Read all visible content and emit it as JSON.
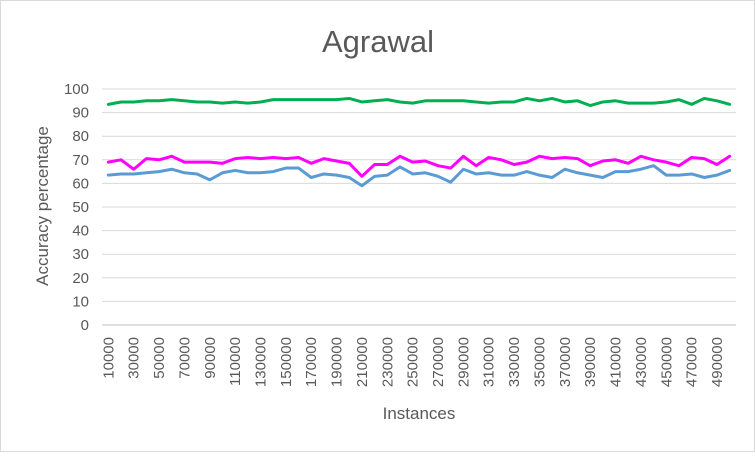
{
  "chart_data": {
    "type": "line",
    "title": "Agrawal",
    "xlabel": "Instances",
    "ylabel": "Accuracy percentage",
    "ylim": [
      0,
      100
    ],
    "yticks": [
      0,
      10,
      20,
      30,
      40,
      50,
      60,
      70,
      80,
      90,
      100
    ],
    "x": [
      10000,
      20000,
      30000,
      40000,
      50000,
      60000,
      70000,
      80000,
      90000,
      100000,
      110000,
      120000,
      130000,
      140000,
      150000,
      160000,
      170000,
      180000,
      190000,
      200000,
      210000,
      220000,
      230000,
      240000,
      250000,
      260000,
      270000,
      280000,
      290000,
      300000,
      310000,
      320000,
      330000,
      340000,
      350000,
      360000,
      370000,
      380000,
      390000,
      400000,
      410000,
      420000,
      430000,
      440000,
      450000,
      460000,
      470000,
      480000,
      490000,
      500000
    ],
    "xtick_labels": [
      "10000",
      "30000",
      "50000",
      "70000",
      "90000",
      "110000",
      "130000",
      "150000",
      "170000",
      "190000",
      "210000",
      "230000",
      "250000",
      "270000",
      "290000",
      "310000",
      "330000",
      "350000",
      "370000",
      "390000",
      "410000",
      "430000",
      "450000",
      "470000",
      "490000"
    ],
    "grid": true,
    "legend": "none",
    "series": [
      {
        "color": "#00b050",
        "values": [
          93.5,
          94.5,
          94.5,
          95.0,
          95.0,
          95.5,
          95.0,
          94.5,
          94.5,
          94.0,
          94.5,
          94.0,
          94.5,
          95.5,
          95.5,
          95.5,
          95.5,
          95.5,
          95.5,
          96.0,
          94.5,
          95.0,
          95.5,
          94.5,
          94.0,
          95.0,
          95.0,
          95.0,
          95.0,
          94.5,
          94.0,
          94.5,
          94.5,
          96.0,
          95.0,
          96.0,
          94.5,
          95.0,
          93.0,
          94.5,
          95.0,
          94.0,
          94.0,
          94.0,
          94.5,
          95.5,
          93.5,
          96.0,
          95.0,
          93.5
        ]
      },
      {
        "color": "#ff00ff",
        "values": [
          69.0,
          70.0,
          66.0,
          70.5,
          70.0,
          71.5,
          69.0,
          69.0,
          69.0,
          68.5,
          70.5,
          71.0,
          70.5,
          71.0,
          70.5,
          71.0,
          68.5,
          70.5,
          69.5,
          68.5,
          63.0,
          68.0,
          68.0,
          71.5,
          69.0,
          69.5,
          67.5,
          66.5,
          71.5,
          67.5,
          71.0,
          70.0,
          68.0,
          69.0,
          71.5,
          70.5,
          71.0,
          70.5,
          67.5,
          69.5,
          70.0,
          68.5,
          71.5,
          70.0,
          69.0,
          67.5,
          71.0,
          70.5,
          68.0,
          71.5
        ]
      },
      {
        "color": "#5b9bd5",
        "values": [
          63.5,
          64.0,
          64.0,
          64.5,
          65.0,
          66.0,
          64.5,
          64.0,
          61.5,
          64.5,
          65.5,
          64.5,
          64.5,
          65.0,
          66.5,
          66.5,
          62.5,
          64.0,
          63.5,
          62.5,
          59.0,
          63.0,
          63.5,
          67.0,
          64.0,
          64.5,
          63.0,
          60.5,
          66.0,
          64.0,
          64.5,
          63.5,
          63.5,
          65.0,
          63.5,
          62.5,
          66.0,
          64.5,
          63.5,
          62.5,
          65.0,
          65.0,
          66.0,
          67.5,
          63.5,
          63.5,
          64.0,
          62.5,
          63.5,
          65.5
        ]
      }
    ]
  }
}
